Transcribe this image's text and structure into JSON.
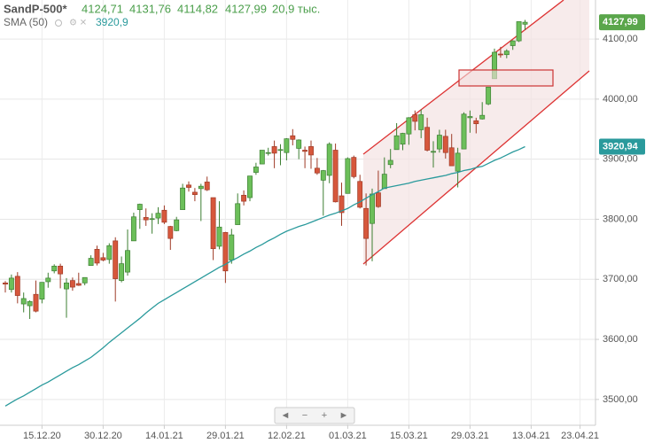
{
  "chart_data": {
    "type": "candlestick",
    "title": "SandP-500*",
    "header_values": [
      "4124,71",
      "4131,76",
      "4114,82",
      "4127,99",
      "20,9 тыс."
    ],
    "sma_header": {
      "name": "SMA (50)",
      "value": "3920,9"
    },
    "categories": [
      null,
      null,
      null,
      null,
      null,
      null,
      "15.12.20",
      null,
      null,
      null,
      null,
      null,
      null,
      null,
      null,
      null,
      "30.12.20",
      null,
      null,
      null,
      null,
      null,
      null,
      null,
      null,
      null,
      "14.01.21",
      null,
      null,
      null,
      null,
      null,
      null,
      null,
      null,
      null,
      "29.01.21",
      null,
      null,
      null,
      null,
      null,
      null,
      null,
      null,
      null,
      "12.02.21",
      null,
      null,
      null,
      null,
      null,
      null,
      null,
      null,
      null,
      "01.03.21",
      null,
      null,
      null,
      null,
      null,
      null,
      null,
      null,
      null,
      "15.03.21",
      null,
      null,
      null,
      null,
      null,
      null,
      null,
      null,
      null,
      "29.03.21",
      null,
      null,
      null,
      null,
      null,
      null,
      null,
      null,
      null,
      "13.04.21",
      null,
      null,
      null,
      null,
      null,
      null,
      null,
      "23.04.21",
      null,
      null
    ],
    "open": [
      3694,
      3683,
      3705,
      3659,
      3656,
      3675,
      3667,
      3696,
      3714,
      3722,
      3684,
      3698,
      3693,
      3694,
      3723,
      3750,
      3736,
      3733,
      3764,
      3698,
      3712,
      3764,
      3816,
      3803,
      3801,
      3802,
      3815,
      3788,
      3781,
      3816,
      3857,
      3845,
      3851,
      3862,
      3836,
      3755,
      3778,
      3732,
      3791,
      3840,
      3836,
      3878,
      3892,
      3910,
      3921,
      3916,
      3911,
      3939,
      3918,
      3915,
      3921,
      3885,
      3865,
      3873,
      3915,
      3839,
      3843,
      3903,
      3863,
      3818,
      3793,
      3844,
      3851,
      3891,
      3916,
      3925,
      3942,
      3974,
      3949,
      3953,
      3913,
      3917,
      3938,
      3919,
      3880,
      3917,
      3969,
      3964,
      3967,
      3992,
      4034,
      4075,
      4074,
      4089,
      4097,
      4124.71,
      null,
      null,
      null,
      null,
      null,
      null,
      null,
      null,
      null,
      null,
      null
    ],
    "high": [
      3697,
      3708,
      3712,
      3678,
      3665,
      3698,
      3695,
      3711,
      3725,
      3726,
      3702,
      3703,
      3711,
      3703,
      3740,
      3756,
      3744,
      3760,
      3770,
      3738,
      3783,
      3811,
      3826,
      3818,
      3810,
      3820,
      3823,
      3789,
      3804,
      3859,
      3863,
      3852,
      3859,
      3871,
      3836,
      3830,
      3779,
      3784,
      3843,
      3848,
      3872,
      3894,
      3915,
      3919,
      3931,
      3925,
      3935,
      3950,
      3933,
      3921,
      3931,
      3902,
      3882,
      3928,
      3926,
      3861,
      3903,
      3906,
      3874,
      3843,
      3851,
      3881,
      3903,
      3917,
      3960,
      3944,
      3970,
      3981,
      3983,
      3969,
      3930,
      3949,
      3949,
      3942,
      3919,
      3978,
      3981,
      3969,
      3995,
      4018,
      4084,
      4087,
      4083,
      4098,
      4129,
      4131.76,
      null,
      null,
      null,
      null,
      null,
      null,
      null,
      null,
      null,
      null,
      null
    ],
    "low": [
      3678,
      3678,
      3660,
      3645,
      3634,
      3645,
      3660,
      3686,
      3710,
      3685,
      3636,
      3681,
      3689,
      3690,
      3723,
      3723,
      3730,
      3726,
      3663,
      3695,
      3706,
      3764,
      3784,
      3789,
      3776,
      3792,
      3792,
      3749,
      3780,
      3816,
      3846,
      3830,
      3797,
      3847,
      3732,
      3750,
      3694,
      3726,
      3791,
      3823,
      3830,
      3874,
      3892,
      3906,
      3885,
      3890,
      3898,
      3923,
      3900,
      3885,
      3884,
      3874,
      3806,
      3860,
      3828,
      3789,
      3843,
      3868,
      3818,
      3723,
      3730,
      3819,
      3851,
      3885,
      3916,
      3915,
      3924,
      3948,
      3935,
      3913,
      3886,
      3911,
      3901,
      3889,
      3853,
      3917,
      3944,
      3943,
      3966,
      3990,
      4034,
      4069,
      4068,
      4082,
      4095,
      4114.82,
      null,
      null,
      null,
      null,
      null,
      null,
      null,
      null,
      null,
      null,
      null
    ],
    "close": [
      3692,
      3702,
      3673,
      3668,
      3663,
      3647,
      3695,
      3702,
      3722,
      3709,
      3694,
      3687,
      3690,
      3703,
      3735,
      3727,
      3732,
      3756,
      3701,
      3726,
      3748,
      3804,
      3825,
      3799,
      3801,
      3810,
      3795,
      3768,
      3799,
      3852,
      3853,
      3841,
      3855,
      3849,
      3751,
      3787,
      3714,
      3774,
      3826,
      3830,
      3872,
      3887,
      3915,
      3911,
      3910,
      3916,
      3934,
      3933,
      3932,
      3913,
      3907,
      3877,
      3881,
      3925,
      3829,
      3811,
      3901,
      3871,
      3820,
      3768,
      3842,
      3821,
      3875,
      3898,
      3939,
      3943,
      3969,
      3963,
      3974,
      3915,
      3913,
      3940,
      3911,
      3889,
      3910,
      3975,
      3971,
      3959,
      3973,
      4020,
      4078,
      4074,
      4080,
      4097,
      4129,
      4127.99,
      null,
      null,
      null,
      null,
      null,
      null,
      null,
      null,
      null,
      null,
      null
    ],
    "up_color": "#6cbf5a",
    "down_color": "#d6573c",
    "sma": {
      "name": "SMA (50)",
      "color": "#2a9a9c",
      "values": [
        3489,
        3495,
        3501,
        3506,
        3512,
        3518,
        3524,
        3529,
        3535,
        3541,
        3547,
        3553,
        3558,
        3564,
        3570,
        3578,
        3586,
        3595,
        3603,
        3611,
        3619,
        3627,
        3635,
        3644,
        3652,
        3660,
        3666,
        3672,
        3678,
        3684,
        3690,
        3696,
        3702,
        3708,
        3714,
        3720,
        3725,
        3731,
        3736,
        3742,
        3747,
        3753,
        3758,
        3764,
        3769,
        3775,
        3780,
        3784,
        3788,
        3791,
        3795,
        3799,
        3803,
        3807,
        3810,
        3814,
        3818,
        3824,
        3829,
        3835,
        3841,
        3846,
        3852,
        3854,
        3856,
        3858,
        3860,
        3863,
        3865,
        3867,
        3869,
        3871,
        3873,
        3876,
        3878,
        3881,
        3883,
        3886,
        3888,
        3893,
        3898,
        3902,
        3907,
        3912,
        3916,
        3920.9,
        null,
        null,
        null,
        null,
        null,
        null,
        null,
        null,
        null,
        null,
        null
      ]
    },
    "last_price": {
      "value": 4127.99,
      "label": "4127,99"
    },
    "sma_last": {
      "value": 3920.94,
      "label": "3920,94"
    },
    "ylim": [
      3457,
      4165
    ],
    "yticks": [
      {
        "value": 3500,
        "label": "3500,00"
      },
      {
        "value": 3600,
        "label": "3600,00"
      },
      {
        "value": 3700,
        "label": "3700,00"
      },
      {
        "value": 3800,
        "label": "3800,00"
      },
      {
        "value": 3900,
        "label": "3900,00"
      },
      {
        "value": 4000,
        "label": "4000,00"
      },
      {
        "value": 4100,
        "label": "4100,00"
      }
    ],
    "grid": true
  }
}
